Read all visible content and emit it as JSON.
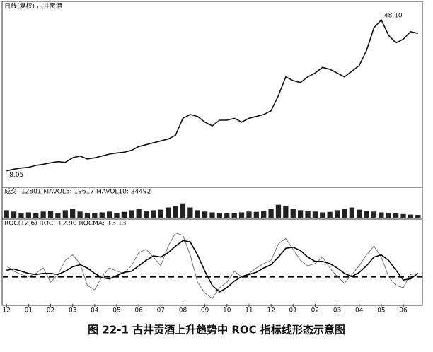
{
  "chart_data": [
    {
      "type": "line",
      "title": "日线(复权) 古井贡酒",
      "ylim": [
        5,
        50
      ],
      "series": [
        {
          "name": "古井贡酒",
          "color": "#111111",
          "values": [
            8.05,
            8.5,
            8.8,
            9.0,
            9.5,
            9.8,
            10.2,
            10.5,
            10.3,
            11.5,
            12.0,
            11.2,
            11.5,
            12.0,
            12.5,
            12.8,
            13.0,
            13.5,
            14.5,
            15.0,
            15.5,
            16.0,
            16.5,
            17.5,
            22.0,
            23.0,
            22.5,
            21.0,
            20.0,
            21.5,
            21.5,
            22.0,
            21.0,
            22.0,
            22.5,
            23.0,
            24.0,
            28.0,
            33.0,
            32.0,
            31.5,
            33.0,
            34.0,
            35.5,
            35.0,
            34.0,
            33.0,
            34.5,
            36.0,
            40.0,
            46.0,
            48.1,
            44.0,
            42.0,
            43.0,
            45.0,
            44.5
          ],
          "value_labels": [
            "8.05",
            null,
            null,
            null,
            null,
            null,
            null,
            null,
            null,
            null,
            null,
            null,
            null,
            null,
            null,
            null,
            null,
            null,
            null,
            null,
            null,
            null,
            null,
            null,
            null,
            null,
            null,
            null,
            null,
            null,
            null,
            null,
            null,
            null,
            null,
            null,
            null,
            null,
            null,
            null,
            null,
            null,
            null,
            null,
            null,
            null,
            null,
            null,
            null,
            null,
            null,
            "48.10",
            null,
            null,
            null,
            null,
            null
          ]
        }
      ]
    },
    {
      "type": "bar",
      "title": "成交: 12801 MAVOL5: 19617 MAVOL10: 24492",
      "ylim": [
        0,
        80000
      ],
      "series": [
        {
          "name": "成交",
          "color": "#222222",
          "values": [
            30000,
            25000,
            20000,
            22000,
            18000,
            25000,
            28000,
            20000,
            30000,
            35000,
            25000,
            20000,
            18000,
            22000,
            25000,
            20000,
            24000,
            30000,
            35000,
            28000,
            30000,
            32000,
            40000,
            45000,
            55000,
            40000,
            30000,
            25000,
            22000,
            20000,
            18000,
            20000,
            22000,
            25000,
            24000,
            26000,
            35000,
            50000,
            45000,
            35000,
            30000,
            28000,
            25000,
            22000,
            24000,
            30000,
            35000,
            40000,
            32000,
            28000,
            25000,
            22000,
            20000,
            18000,
            16000,
            14000,
            12801
          ]
        }
      ]
    },
    {
      "type": "line",
      "title": "ROC(12,6) ROC: +2.90 ROCMA: +3.13",
      "ylim": [
        -25,
        45
      ],
      "reference_line": 0,
      "categories": [
        "12",
        null,
        null,
        "01",
        null,
        null,
        "02",
        null,
        null,
        "03",
        null,
        null,
        "04",
        null,
        null,
        "05",
        null,
        null,
        "06",
        null,
        null,
        "07",
        null,
        null,
        "08",
        null,
        null,
        "09",
        null,
        null,
        "10",
        null,
        null,
        "11",
        null,
        null,
        "12",
        null,
        null,
        "01",
        null,
        null,
        "02",
        null,
        null,
        "03",
        null,
        null,
        "04",
        null,
        null,
        "05",
        null,
        null,
        "06",
        null,
        null
      ],
      "series": [
        {
          "name": "ROC",
          "color": "#777777",
          "values": [
            10,
            5,
            2,
            0,
            3,
            8,
            -5,
            2,
            15,
            20,
            12,
            -8,
            -12,
            0,
            8,
            5,
            3,
            10,
            22,
            25,
            18,
            10,
            28,
            40,
            38,
            20,
            -5,
            -15,
            -20,
            -10,
            -5,
            5,
            0,
            3,
            8,
            12,
            15,
            30,
            35,
            25,
            15,
            10,
            12,
            18,
            8,
            0,
            -6,
            2,
            10,
            20,
            28,
            18,
            0,
            -8,
            -10,
            2,
            2.9
          ]
        },
        {
          "name": "ROCMA",
          "color": "#000000",
          "values": [
            6,
            7,
            5,
            3,
            2,
            3,
            3,
            2,
            5,
            9,
            11,
            8,
            3,
            -1,
            -2,
            1,
            4,
            5,
            10,
            15,
            19,
            18,
            22,
            28,
            33,
            32,
            20,
            5,
            -8,
            -14,
            -10,
            -4,
            0,
            2,
            4,
            8,
            11,
            18,
            26,
            27,
            24,
            18,
            14,
            14,
            12,
            8,
            3,
            0,
            4,
            10,
            18,
            20,
            15,
            6,
            -3,
            -2,
            3.13
          ]
        }
      ]
    }
  ],
  "caption": "图 22-1   古井贡酒上升趋势中 ROC 指标线形态示意图"
}
